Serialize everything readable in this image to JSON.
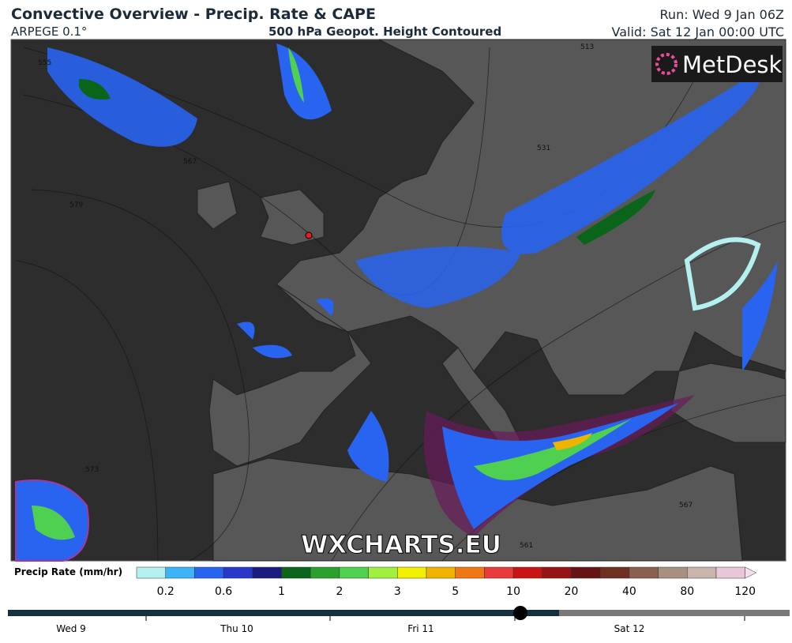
{
  "header": {
    "title": "Convective Overview - Precip. Rate & CAPE",
    "model": "ARPEGE 0.1°",
    "level": "500 hPa Geopot. Height Contoured",
    "run": "Run: Wed 9 Jan 06Z",
    "valid": "Valid: Sat 12 Jan 00:00 UTC"
  },
  "map": {
    "logo": "MetDesk",
    "watermark": "WXCHARTS.EU",
    "contour_labels": [
      "555",
      "567",
      "579",
      "573",
      "513",
      "531",
      "561",
      "567"
    ]
  },
  "legend": {
    "title": "Precip Rate (mm/hr)",
    "labels": [
      "0.2",
      "0.6",
      "1",
      "2",
      "3",
      "5",
      "10",
      "20",
      "40",
      "80",
      "120"
    ],
    "colors": [
      "#b4f0f0",
      "#3cb4f5",
      "#2864f0",
      "#2838c8",
      "#1c1c80",
      "#0a641a",
      "#2ca02c",
      "#50d050",
      "#a0f040",
      "#f0f000",
      "#f0b400",
      "#f07814",
      "#e83c3c",
      "#c81414",
      "#961414",
      "#641414",
      "#703020",
      "#8a6050",
      "#a89080",
      "#c8b4aa",
      "#e8c8d8"
    ]
  },
  "timeline": {
    "days": [
      "Wed 9",
      "Thu 10",
      "Fri 11",
      "Sat 12"
    ]
  }
}
